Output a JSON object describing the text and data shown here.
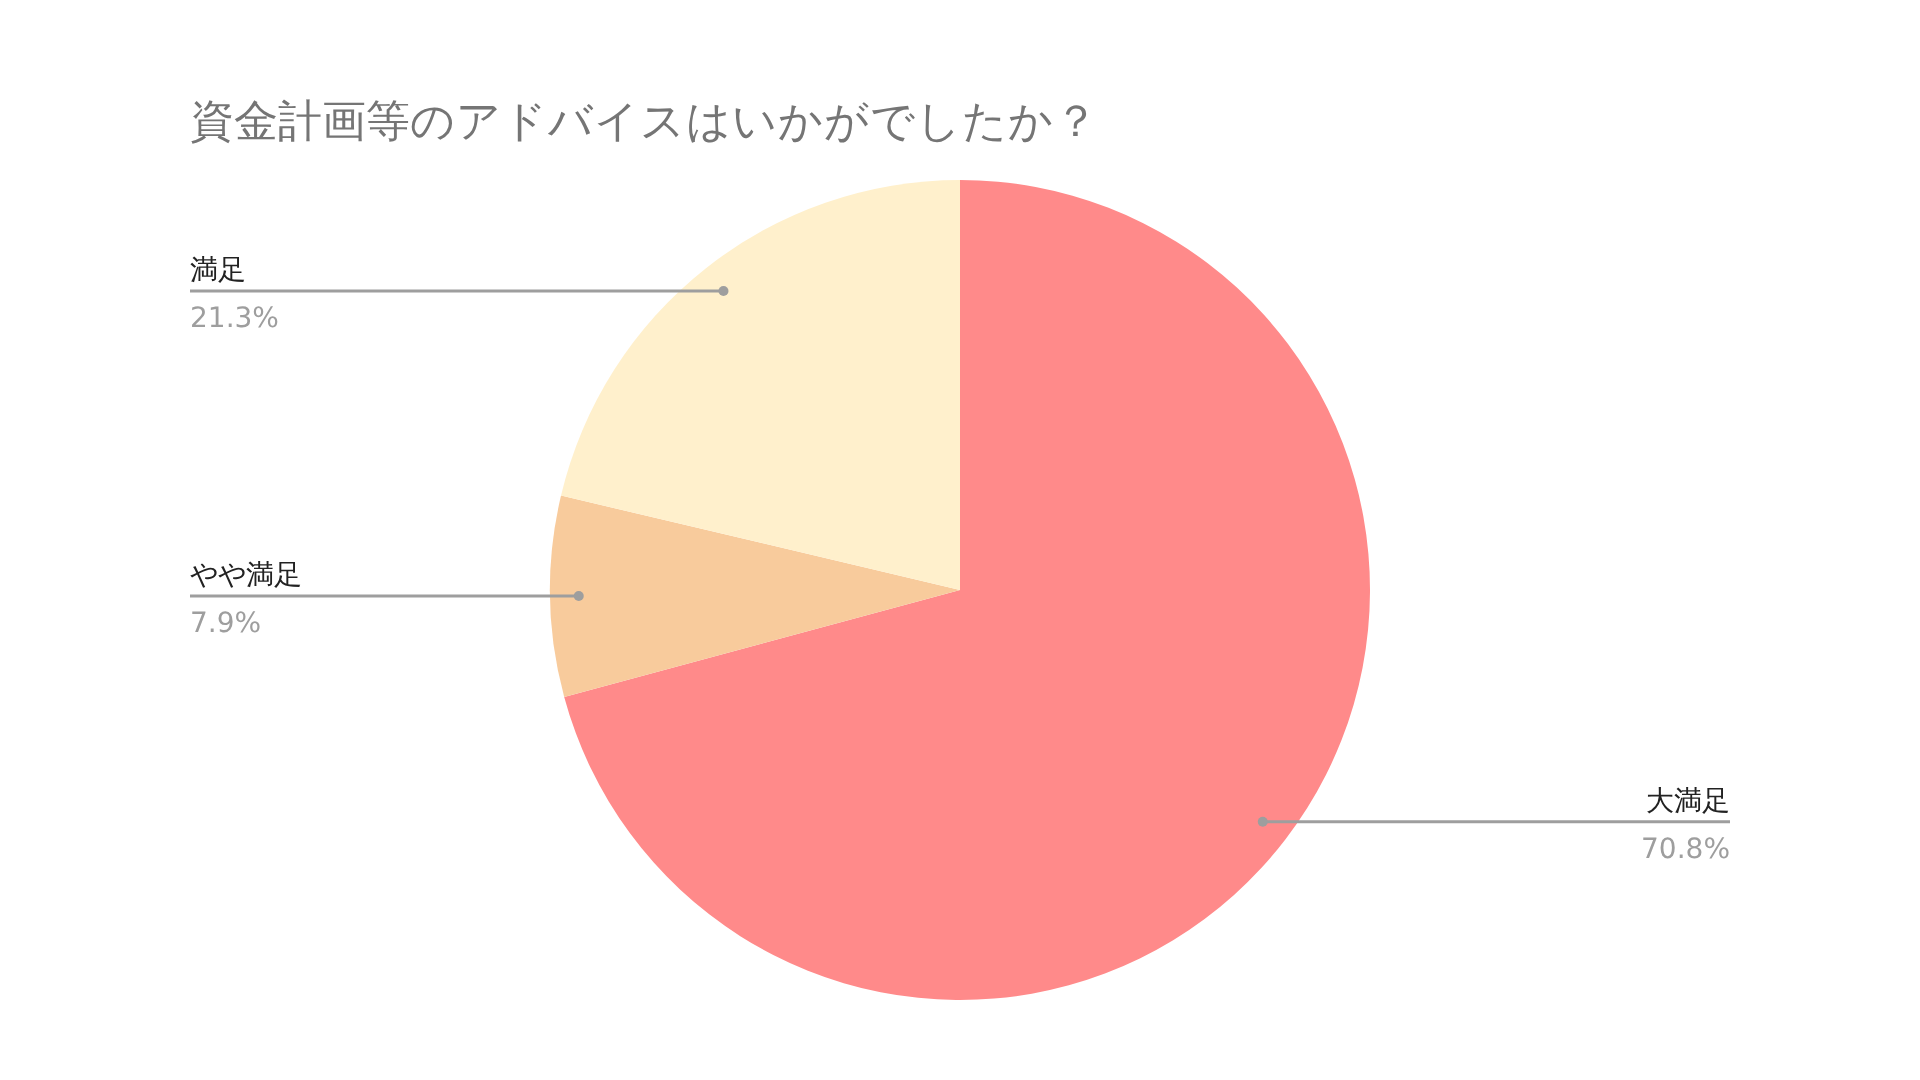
{
  "chart_data": {
    "type": "pie",
    "title": "資金計画等のアドバイスはいかがでしたか？",
    "categories": [
      "大満足",
      "やや満足",
      "満足"
    ],
    "values": [
      70.8,
      7.9,
      21.3
    ],
    "colors": [
      "#ff8a8a",
      "#f8cb9c",
      "#fff0cc"
    ],
    "value_labels": [
      "70.8%",
      "7.9%",
      "21.3%"
    ]
  }
}
